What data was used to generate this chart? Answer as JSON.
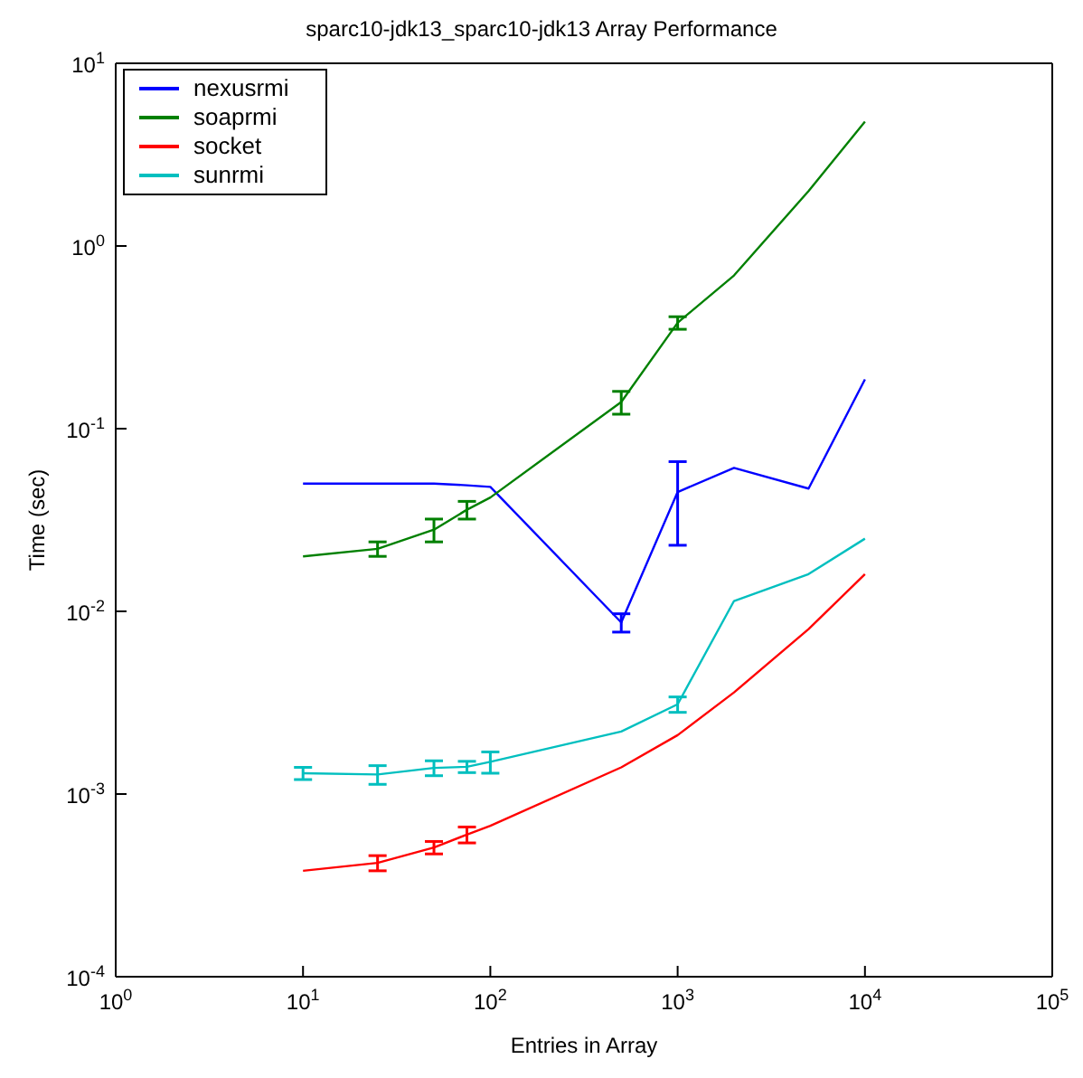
{
  "chart_data": {
    "type": "line",
    "title": "sparc10-jdk13_sparc10-jdk13 Array Performance",
    "xlabel": "Entries in Array",
    "ylabel": "Time (sec)",
    "log": "xy",
    "grid": false,
    "legend": "top left",
    "marker": "none",
    "line_style": "solid",
    "x": [
      10,
      25,
      50,
      75,
      100,
      500,
      1000,
      2000,
      5000,
      10000
    ],
    "xlim": [
      1,
      100000
    ],
    "xticks": [
      {
        "value": 1,
        "label": "10$^{0}$"
      },
      {
        "value": 10,
        "label": "10$^{1}$"
      },
      {
        "value": 100,
        "label": "10$^{2}$"
      },
      {
        "value": 1000,
        "label": "10$^{3}$"
      },
      {
        "value": 10000,
        "label": "10$^{4}$"
      },
      {
        "value": 100000,
        "label": "10$^{5}$"
      }
    ],
    "ylim": [
      0.0001,
      10
    ],
    "yticks": [
      {
        "value": 0.0001,
        "label": "10$^{-4}$"
      },
      {
        "value": 0.001,
        "label": "10$^{-3}$"
      },
      {
        "value": 0.01,
        "label": "10$^{-2}$"
      },
      {
        "value": 0.1,
        "label": "10$^{-1}$"
      },
      {
        "value": 1,
        "label": "10$^{0}$"
      },
      {
        "value": 10,
        "label": "10$^{1}$"
      }
    ],
    "series": [
      {
        "name": "nexusrmi",
        "color": "#0000ff",
        "values": [
          0.05,
          0.05,
          0.05,
          0.049,
          0.048,
          0.0087,
          0.045,
          0.061,
          0.047,
          0.186
        ],
        "errors": [
          null,
          null,
          null,
          null,
          null,
          0.001,
          [
            0.023,
            0.066
          ],
          null,
          null,
          null
        ]
      },
      {
        "name": "soaprmi",
        "color": "#008000",
        "values": [
          0.02,
          0.022,
          0.028,
          0.036,
          0.042,
          0.14,
          0.38,
          0.69,
          2.0,
          4.8
        ],
        "errors": [
          null,
          0.002,
          0.004,
          0.004,
          null,
          0.02,
          0.03,
          null,
          null,
          null
        ]
      },
      {
        "name": "socket",
        "color": "#ff0000",
        "values": [
          0.00038,
          0.00042,
          0.00051,
          0.0006,
          0.00067,
          0.0014,
          0.0021,
          0.0036,
          0.008,
          0.016
        ],
        "errors": [
          null,
          4e-05,
          4e-05,
          6e-05,
          null,
          null,
          null,
          null,
          null,
          null
        ]
      },
      {
        "name": "sunrmi",
        "color": "#00bfbf",
        "values": [
          0.0013,
          0.00128,
          0.00139,
          0.00141,
          0.0015,
          0.0022,
          0.0031,
          0.0114,
          0.016,
          0.025
        ],
        "errors": [
          0.0001,
          0.00015,
          0.00013,
          0.0001,
          0.0002,
          null,
          0.0003,
          null,
          null,
          null
        ]
      }
    ]
  }
}
